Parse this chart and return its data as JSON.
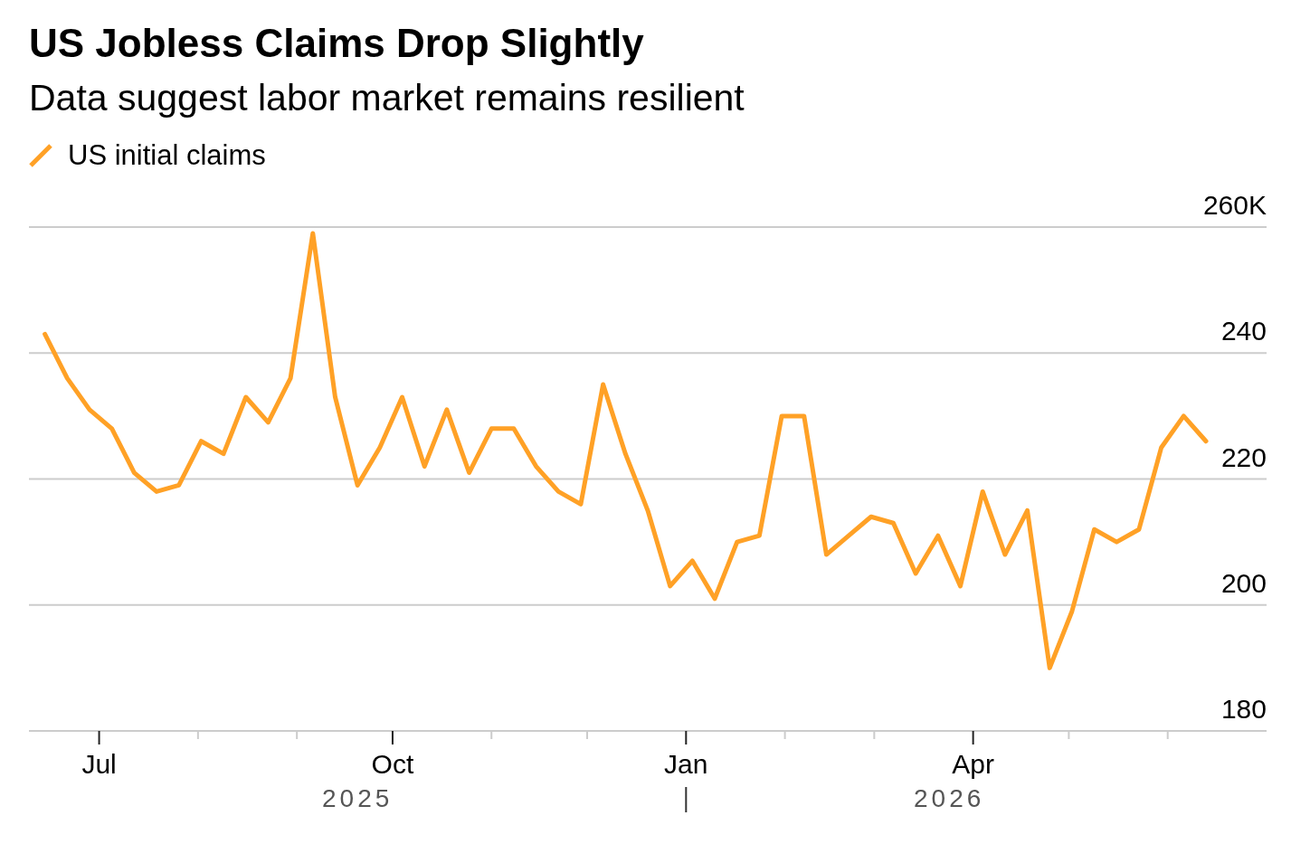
{
  "chart_data": {
    "type": "line",
    "title": "US Jobless Claims Drop Slightly",
    "subtitle": "Data suggest labor market remains resilient",
    "x": [
      "2025-06-14",
      "2025-06-21",
      "2025-06-28",
      "2025-07-05",
      "2025-07-12",
      "2025-07-19",
      "2025-07-26",
      "2025-08-02",
      "2025-08-09",
      "2025-08-16",
      "2025-08-23",
      "2025-08-30",
      "2025-09-06",
      "2025-09-13",
      "2025-09-20",
      "2025-09-27",
      "2025-10-04",
      "2025-10-11",
      "2025-10-18",
      "2025-10-25",
      "2025-11-01",
      "2025-11-08",
      "2025-11-15",
      "2025-11-22",
      "2025-11-29",
      "2025-12-06",
      "2025-12-13",
      "2025-12-20",
      "2025-12-27",
      "2026-01-03",
      "2026-01-10",
      "2026-01-17",
      "2026-01-24",
      "2026-01-31",
      "2026-02-07",
      "2026-02-14",
      "2026-02-21",
      "2026-02-28",
      "2026-03-07",
      "2026-03-14",
      "2026-03-21",
      "2026-03-28",
      "2026-04-04",
      "2026-04-11",
      "2026-04-18",
      "2026-04-25",
      "2026-05-02",
      "2026-05-09",
      "2026-05-16",
      "2026-05-23",
      "2026-05-30",
      "2026-06-06",
      "2026-06-13"
    ],
    "series": [
      {
        "name": "US initial claims",
        "color": "#ffa126",
        "values": [
          243,
          236,
          231,
          228,
          221,
          218,
          219,
          226,
          224,
          233,
          229,
          236,
          259,
          233,
          219,
          225,
          233,
          222,
          231,
          221,
          228,
          228,
          222,
          218,
          216,
          235,
          224,
          215,
          203,
          207,
          201,
          210,
          211,
          230,
          230,
          208,
          211,
          214,
          213,
          205,
          211,
          203,
          218,
          208,
          215,
          190,
          199,
          212,
          210,
          212,
          225,
          230,
          226
        ]
      }
    ],
    "xlim": [
      "2025-06-09",
      "2026-07-02"
    ],
    "xticks": [
      {
        "value": "2025-07-01",
        "label": "Jul"
      },
      {
        "value": "2025-08-01",
        "label": null
      },
      {
        "value": "2025-09-01",
        "label": null
      },
      {
        "value": "2025-10-01",
        "label": "Oct"
      },
      {
        "value": "2025-11-01",
        "label": null
      },
      {
        "value": "2025-12-01",
        "label": null
      },
      {
        "value": "2026-01-01",
        "label": "Jan"
      },
      {
        "value": "2026-02-01",
        "label": null
      },
      {
        "value": "2026-03-01",
        "label": null
      },
      {
        "value": "2026-04-01",
        "label": "Apr"
      },
      {
        "value": "2026-05-01",
        "label": null
      },
      {
        "value": "2026-06-01",
        "label": null
      }
    ],
    "ylim": [
      180,
      260
    ],
    "yticks": [
      180,
      200,
      220,
      240,
      {
        "value": 260,
        "label": "260K"
      }
    ],
    "grid": "y",
    "legend": "top left",
    "annotations": [
      "2025",
      "2026"
    ]
  }
}
